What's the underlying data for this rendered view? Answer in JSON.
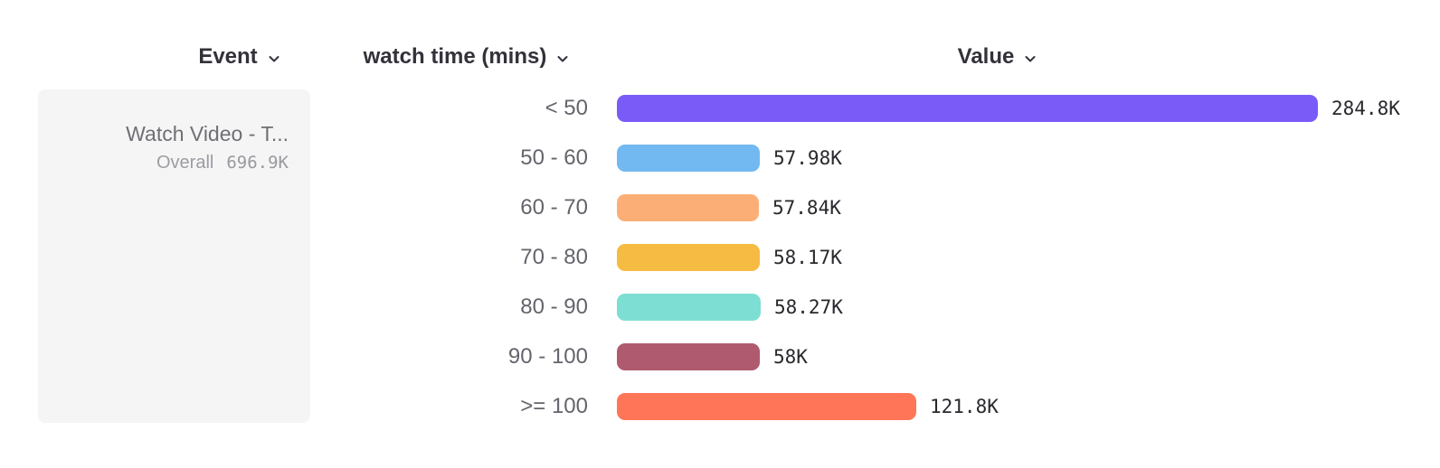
{
  "header": {
    "event_label": "Event",
    "breakdown_label": "watch time (mins)",
    "value_label": "Value"
  },
  "event_card": {
    "title": "Watch Video - T...",
    "overall_label": "Overall",
    "overall_value": "696.9K"
  },
  "chart_data": {
    "type": "bar",
    "orientation": "horizontal",
    "title": "",
    "xlabel": "Value",
    "ylabel": "watch time (mins)",
    "xlim": [
      0,
      284800
    ],
    "grid": false,
    "legend": "none",
    "categories": [
      "< 50",
      "50 - 60",
      "60 - 70",
      "70 - 80",
      "80 - 90",
      "90 - 100",
      ">= 100"
    ],
    "values": [
      284800,
      57980,
      57840,
      58170,
      58270,
      58000,
      121800
    ],
    "value_labels": [
      "284.8K",
      "57.98K",
      "57.84K",
      "58.17K",
      "58.27K",
      "58K",
      "121.8K"
    ],
    "bar_colors": [
      "#7a5bf7",
      "#73b9f1",
      "#fbaf77",
      "#f6bb42",
      "#7ddfd3",
      "#b05a6f",
      "#ff7557"
    ],
    "overall_total": 696900
  },
  "colors": {
    "background": "#ffffff",
    "card_background": "#f5f5f6",
    "header_text": "#32323a",
    "bucket_label_text": "#64646c",
    "value_text": "#28282d",
    "card_title_text": "#6f6f75",
    "card_subtitle_text": "#9c9ca2"
  },
  "icons": {
    "chevron_down": "⌄"
  }
}
